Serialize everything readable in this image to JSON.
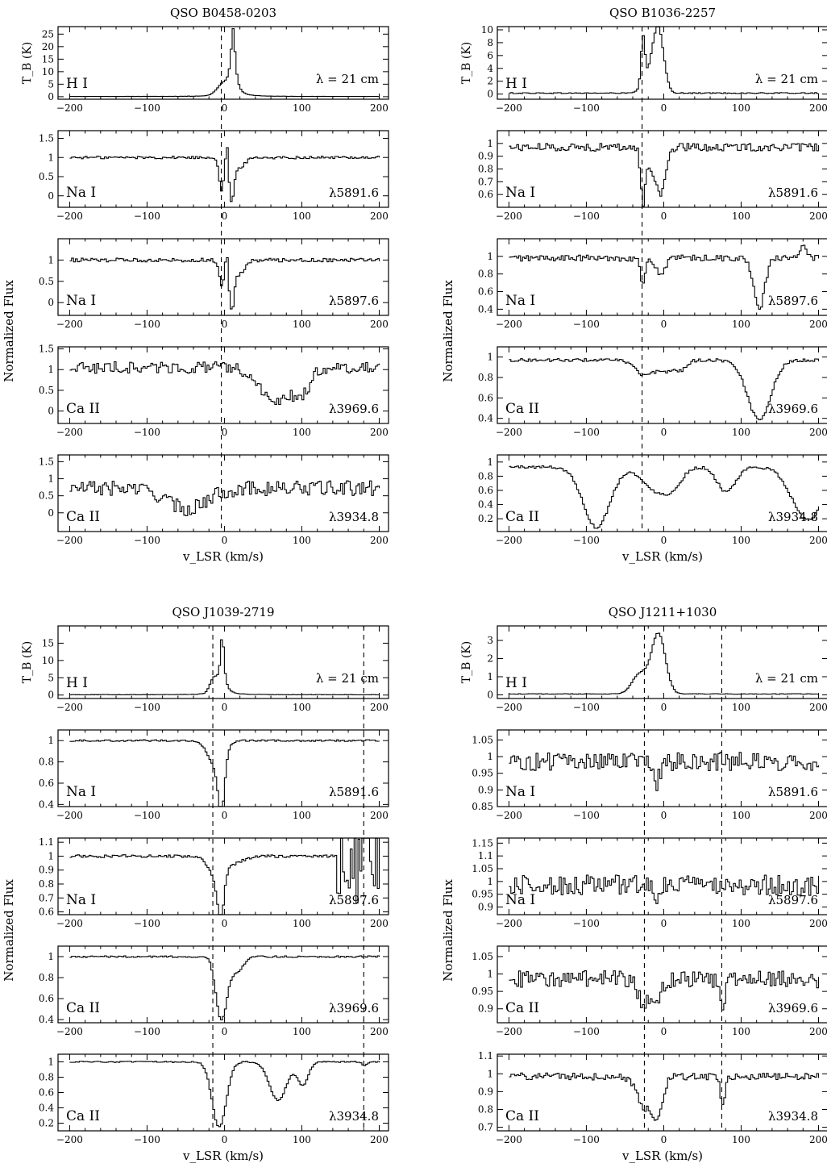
{
  "figure": {
    "quadrants": [
      {
        "title": "QSO B0458-0203",
        "xlabel": "v_LSR (km/s)",
        "ylabel_norm": "Normalized Flux",
        "dashed_lines_kms": [
          -4
        ],
        "chart_data": [
          {
            "type": "line",
            "species": "H I",
            "transition": "λ = 21 cm",
            "ylabel": "T_B (K)",
            "ylim": [
              -1,
              28
            ],
            "yticks": [
              0,
              5,
              10,
              15,
              20,
              25
            ],
            "profile": {
              "baseline": 0.1,
              "noise": 0.05,
              "features": [
                {
                  "v": 10,
                  "amp": 26,
                  "sigma": 3.5,
                  "type": "lorentz"
                },
                {
                  "v": -3,
                  "amp": 4,
                  "sigma": 8
                }
              ]
            }
          },
          {
            "type": "line",
            "species": "Na I",
            "transition": "λ5891.6",
            "ylim": [
              -0.3,
              1.7
            ],
            "yticks": [
              0,
              0.5,
              1,
              1.5
            ],
            "profile": {
              "baseline": 1.0,
              "noise": 0.035,
              "features": [
                {
                  "v": -5,
                  "amp": -0.85,
                  "sigma": 3
                },
                {
                  "v": 2,
                  "amp": 0.6,
                  "sigma": 1.5
                },
                {
                  "v": 8,
                  "amp": -1.0,
                  "sigma": 3
                },
                {
                  "v": 16,
                  "amp": -0.3,
                  "sigma": 8
                }
              ]
            }
          },
          {
            "type": "line",
            "species": "Na I",
            "transition": "λ5897.6",
            "ylim": [
              -0.3,
              1.5
            ],
            "yticks": [
              0,
              0.5,
              1
            ],
            "profile": {
              "baseline": 1.0,
              "noise": 0.045,
              "features": [
                {
                  "v": -5,
                  "amp": -0.6,
                  "sigma": 3
                },
                {
                  "v": 2,
                  "amp": 0.4,
                  "sigma": 1.5
                },
                {
                  "v": 8,
                  "amp": -1.0,
                  "sigma": 3
                },
                {
                  "v": 16,
                  "amp": -0.35,
                  "sigma": 8
                }
              ]
            }
          },
          {
            "type": "line",
            "species": "Ca II",
            "transition": "λ3969.6",
            "ylim": [
              -0.3,
              1.55
            ],
            "yticks": [
              0,
              0.5,
              1,
              1.5
            ],
            "profile": {
              "baseline": 1.05,
              "noise": 0.14,
              "features": [
                {
                  "v": 65,
                  "amp": -0.85,
                  "sigma": 20
                },
                {
                  "v": 100,
                  "amp": -0.5,
                  "sigma": 10
                }
              ]
            }
          },
          {
            "type": "line",
            "species": "Ca II",
            "transition": "λ3934.8",
            "ylim": [
              -0.55,
              1.7
            ],
            "yticks": [
              0,
              0.5,
              1,
              1.5
            ],
            "profile": {
              "baseline": 0.72,
              "noise": 0.22,
              "features": [
                {
                  "v": -50,
                  "amp": -0.6,
                  "sigma": 25
                }
              ]
            }
          }
        ]
      },
      {
        "title": "QSO B1036-2257",
        "xlabel": "v_LSR (km/s)",
        "ylabel_norm": "Normalized Flux",
        "dashed_lines_kms": [
          -28
        ],
        "chart_data": [
          {
            "type": "line",
            "species": "H I",
            "transition": "λ = 21 cm",
            "ylim": [
              -0.8,
              10.5
            ],
            "yticks": [
              0,
              2,
              4,
              6,
              8,
              10
            ],
            "ylabel": "T_B (K)",
            "profile": {
              "baseline": 0.15,
              "noise": 0.08,
              "features": [
                {
                  "v": -28,
                  "amp": 7.5,
                  "sigma": 2.5
                },
                {
                  "v": -8,
                  "amp": 9,
                  "sigma": 7
                },
                {
                  "v": -18,
                  "amp": 2.5,
                  "sigma": 9
                }
              ]
            }
          },
          {
            "type": "line",
            "species": "Na I",
            "transition": "λ5891.6",
            "ylim": [
              0.5,
              1.1
            ],
            "yticks": [
              0.6,
              0.7,
              0.8,
              0.9,
              1
            ],
            "profile": {
              "baseline": 0.97,
              "noise": 0.03,
              "features": [
                {
                  "v": -28,
                  "amp": -0.42,
                  "sigma": 3
                },
                {
                  "v": -18,
                  "amp": -0.15,
                  "sigma": 5
                },
                {
                  "v": -5,
                  "amp": -0.36,
                  "sigma": 6
                }
              ]
            }
          },
          {
            "type": "line",
            "species": "Na I",
            "transition": "λ5897.6",
            "ylim": [
              0.33,
              1.2
            ],
            "yticks": [
              0.4,
              0.6,
              0.8,
              1
            ],
            "profile": {
              "baseline": 0.98,
              "noise": 0.035,
              "features": [
                {
                  "v": -28,
                  "amp": -0.32,
                  "sigma": 3
                },
                {
                  "v": -5,
                  "amp": -0.18,
                  "sigma": 6
                },
                {
                  "v": 122,
                  "amp": -0.58,
                  "sigma": 7
                },
                {
                  "v": 180,
                  "amp": 0.12,
                  "sigma": 5
                }
              ]
            }
          },
          {
            "type": "line",
            "species": "Ca II",
            "transition": "λ3969.6",
            "ylim": [
              0.35,
              1.1
            ],
            "yticks": [
              0.4,
              0.6,
              0.8,
              1
            ],
            "profile": {
              "baseline": 0.97,
              "noise": 0.015,
              "features": [
                {
                  "v": -25,
                  "amp": -0.15,
                  "sigma": 12
                },
                {
                  "v": 0,
                  "amp": -0.1,
                  "sigma": 8
                },
                {
                  "v": 20,
                  "amp": -0.1,
                  "sigma": 8
                },
                {
                  "v": 122,
                  "amp": -0.58,
                  "sigma": 15
                }
              ]
            }
          },
          {
            "type": "line",
            "species": "Ca II",
            "transition": "λ3934.8",
            "ylim": [
              0.02,
              1.1
            ],
            "yticks": [
              0.2,
              0.4,
              0.6,
              0.8,
              1
            ],
            "profile": {
              "baseline": 0.93,
              "noise": 0.02,
              "features": [
                {
                  "v": -88,
                  "amp": -0.85,
                  "sigma": 17
                },
                {
                  "v": -15,
                  "amp": -0.3,
                  "sigma": 15
                },
                {
                  "v": 10,
                  "amp": -0.28,
                  "sigma": 12
                },
                {
                  "v": 80,
                  "amp": -0.35,
                  "sigma": 12
                },
                {
                  "v": 185,
                  "amp": -0.75,
                  "sigma": 20
                }
              ]
            }
          }
        ]
      },
      {
        "title": "QSO J1039-2719",
        "xlabel": "v_LSR (km/s)",
        "ylabel_norm": "Normalized Flux",
        "dashed_lines_kms": [
          -15,
          180
        ],
        "chart_data": [
          {
            "type": "line",
            "species": "H I",
            "transition": "λ = 21 cm",
            "ylim": [
              -1,
              20
            ],
            "yticks": [
              0,
              5,
              10,
              15
            ],
            "ylabel": "T_B (K)",
            "profile": {
              "baseline": 0.1,
              "noise": 0.05,
              "features": [
                {
                  "v": -4,
                  "amp": 17,
                  "sigma": 3,
                  "type": "lorentz"
                },
                {
                  "v": -15,
                  "amp": 4,
                  "sigma": 5
                }
              ]
            }
          },
          {
            "type": "line",
            "species": "Na I",
            "transition": "λ5891.6",
            "ylim": [
              0.38,
              1.1
            ],
            "yticks": [
              0.4,
              0.6,
              0.8,
              1
            ],
            "profile": {
              "baseline": 1.0,
              "noise": 0.008,
              "features": [
                {
                  "v": -5,
                  "amp": -0.5,
                  "sigma": 4
                },
                {
                  "v": -12,
                  "amp": -0.25,
                  "sigma": 10
                }
              ]
            }
          },
          {
            "type": "line",
            "species": "Na I",
            "transition": "λ5897.6",
            "ylim": [
              0.58,
              1.13
            ],
            "yticks": [
              0.6,
              0.7,
              0.8,
              0.9,
              1,
              1.1
            ],
            "profile": {
              "baseline": 1.0,
              "noise": 0.01,
              "features": [
                {
                  "v": -6,
                  "amp": -0.32,
                  "sigma": 4
                },
                {
                  "v": -12,
                  "amp": -0.14,
                  "sigma": 10
                },
                {
                  "v": 8,
                  "amp": -0.05,
                  "sigma": 15
                }
              ],
              "noisy_region": {
                "from": 145,
                "to": 200,
                "amplitude": 0.35
              }
            }
          },
          {
            "type": "line",
            "species": "Ca II",
            "transition": "λ3969.6",
            "ylim": [
              0.37,
              1.1
            ],
            "yticks": [
              0.4,
              0.6,
              0.8,
              1
            ],
            "profile": {
              "baseline": 1.0,
              "noise": 0.008,
              "features": [
                {
                  "v": -5,
                  "amp": -0.6,
                  "sigma": 7
                },
                {
                  "v": 15,
                  "amp": -0.15,
                  "sigma": 8
                }
              ]
            }
          },
          {
            "type": "line",
            "species": "Ca II",
            "transition": "λ3934.8",
            "ylim": [
              0.1,
              1.1
            ],
            "yticks": [
              0.2,
              0.4,
              0.6,
              0.8,
              1
            ],
            "profile": {
              "baseline": 1.0,
              "noise": 0.008,
              "features": [
                {
                  "v": -8,
                  "amp": -0.85,
                  "sigma": 9
                },
                {
                  "v": 68,
                  "amp": -0.5,
                  "sigma": 11
                },
                {
                  "v": 100,
                  "amp": -0.3,
                  "sigma": 7
                },
                {
                  "v": 180,
                  "amp": -0.05,
                  "sigma": 3
                }
              ]
            }
          }
        ]
      },
      {
        "title": "QSO J1211+1030",
        "xlabel": "v_LSR (km/s)",
        "ylabel_norm": "Normalized Flux",
        "dashed_lines_kms": [
          -25,
          75
        ],
        "chart_data": [
          {
            "type": "line",
            "species": "H I",
            "transition": "λ = 21 cm",
            "ylim": [
              -0.2,
              3.8
            ],
            "yticks": [
              0,
              1,
              2,
              3
            ],
            "ylabel": "T_B (K)",
            "profile": {
              "baseline": 0.05,
              "noise": 0.015,
              "features": [
                {
                  "v": -8,
                  "amp": 3.3,
                  "sigma": 9
                },
                {
                  "v": -32,
                  "amp": 1.1,
                  "sigma": 10
                }
              ]
            }
          },
          {
            "type": "line",
            "species": "Na I",
            "transition": "λ5891.6",
            "ylim": [
              0.85,
              1.08
            ],
            "yticks": [
              0.85,
              0.9,
              0.95,
              1,
              1.05
            ],
            "profile": {
              "baseline": 0.985,
              "noise": 0.028,
              "features": [
                {
                  "v": -10,
                  "amp": -0.06,
                  "sigma": 4
                }
              ]
            }
          },
          {
            "type": "line",
            "species": "Na I",
            "transition": "λ5897.6",
            "ylim": [
              0.87,
              1.17
            ],
            "yticks": [
              0.9,
              0.95,
              1,
              1.05,
              1.1,
              1.15
            ],
            "profile": {
              "baseline": 0.985,
              "noise": 0.04,
              "features": [
                {
                  "v": -10,
                  "amp": -0.05,
                  "sigma": 4
                }
              ]
            }
          },
          {
            "type": "line",
            "species": "Ca II",
            "transition": "λ3969.6",
            "ylim": [
              0.86,
              1.08
            ],
            "yticks": [
              0.9,
              0.95,
              1,
              1.05
            ],
            "profile": {
              "baseline": 0.985,
              "noise": 0.025,
              "features": [
                {
                  "v": -25,
                  "amp": -0.07,
                  "sigma": 8
                },
                {
                  "v": -8,
                  "amp": -0.05,
                  "sigma": 5
                },
                {
                  "v": 75,
                  "amp": -0.08,
                  "sigma": 3
                }
              ]
            }
          },
          {
            "type": "line",
            "species": "Ca II",
            "transition": "λ3934.8",
            "ylim": [
              0.68,
              1.11
            ],
            "yticks": [
              0.7,
              0.8,
              0.9,
              1,
              1.1
            ],
            "profile": {
              "baseline": 0.985,
              "noise": 0.02,
              "features": [
                {
                  "v": -25,
                  "amp": -0.18,
                  "sigma": 10
                },
                {
                  "v": -8,
                  "amp": -0.2,
                  "sigma": 6
                },
                {
                  "v": 75,
                  "amp": -0.15,
                  "sigma": 3
                }
              ]
            }
          }
        ]
      }
    ],
    "xticks": [
      -200,
      -100,
      0,
      100,
      200
    ],
    "xlim": [
      -215,
      212
    ]
  }
}
